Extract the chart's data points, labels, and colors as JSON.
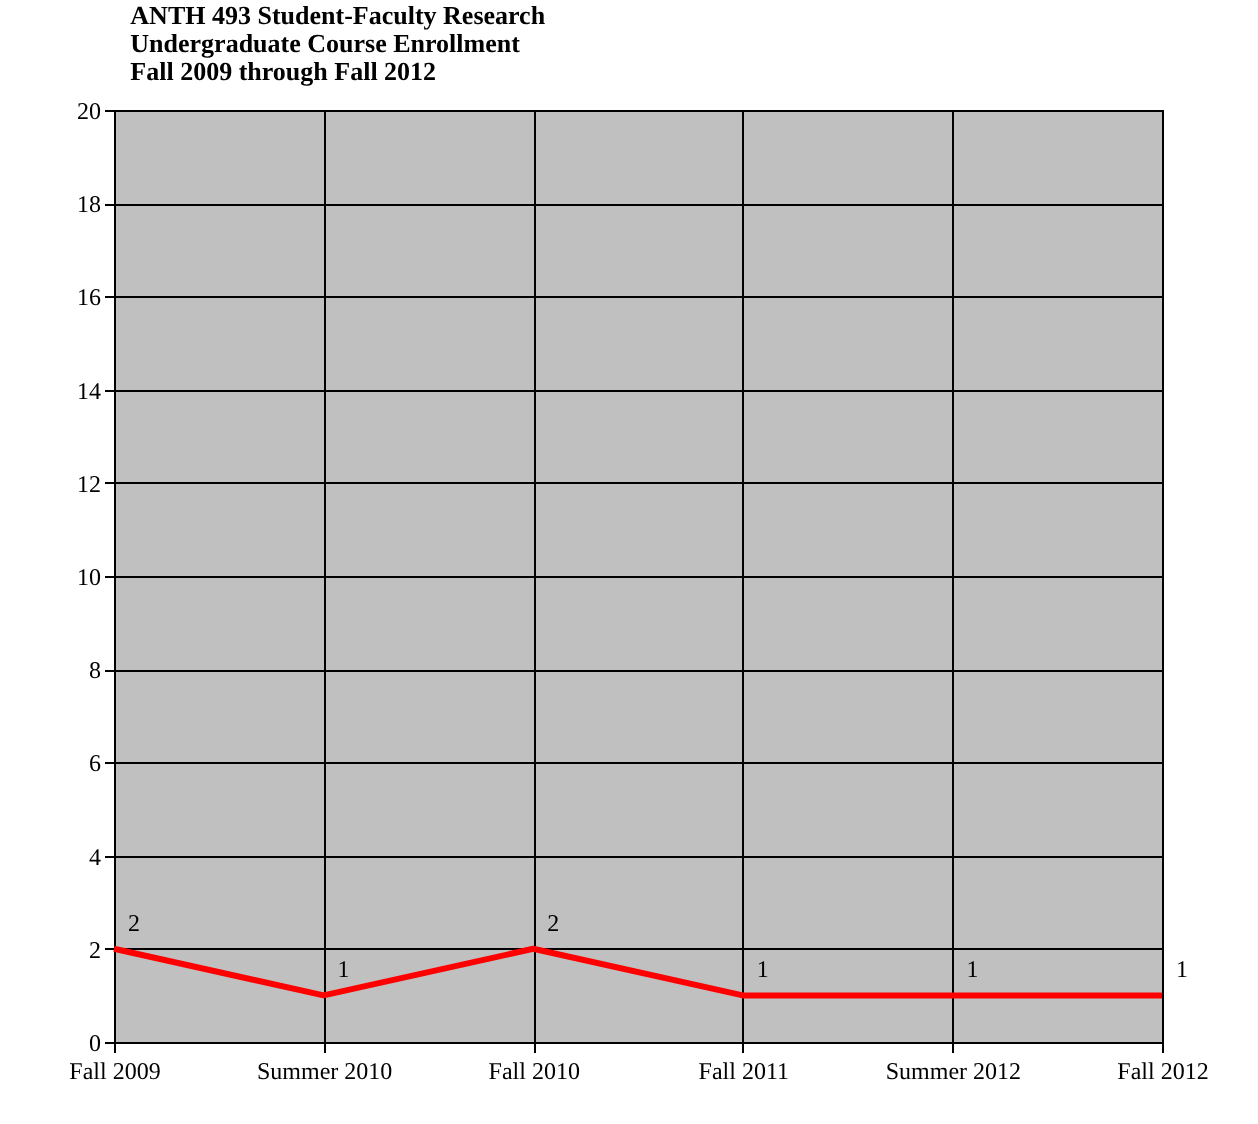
{
  "chart_data": {
    "type": "line",
    "title": "ANTH 493 Student-Faculty Research\nUndergraduate Course Enrollment\nFall 2009 through Fall 2012",
    "categories": [
      "Fall 2009",
      "Summer 2010",
      "Fall 2010",
      "Fall 2011",
      "Summer 2012",
      "Fall 2012"
    ],
    "series": [
      {
        "color": "#ff0000",
        "values": [
          2,
          1,
          2,
          1,
          1,
          1
        ]
      }
    ],
    "ylim": [
      0,
      20
    ],
    "yticks": [
      0,
      2,
      4,
      6,
      8,
      10,
      12,
      14,
      16,
      18,
      20
    ],
    "grid": true,
    "data_labels": true,
    "marker": "none",
    "line_style": "solid",
    "legend": false
  }
}
